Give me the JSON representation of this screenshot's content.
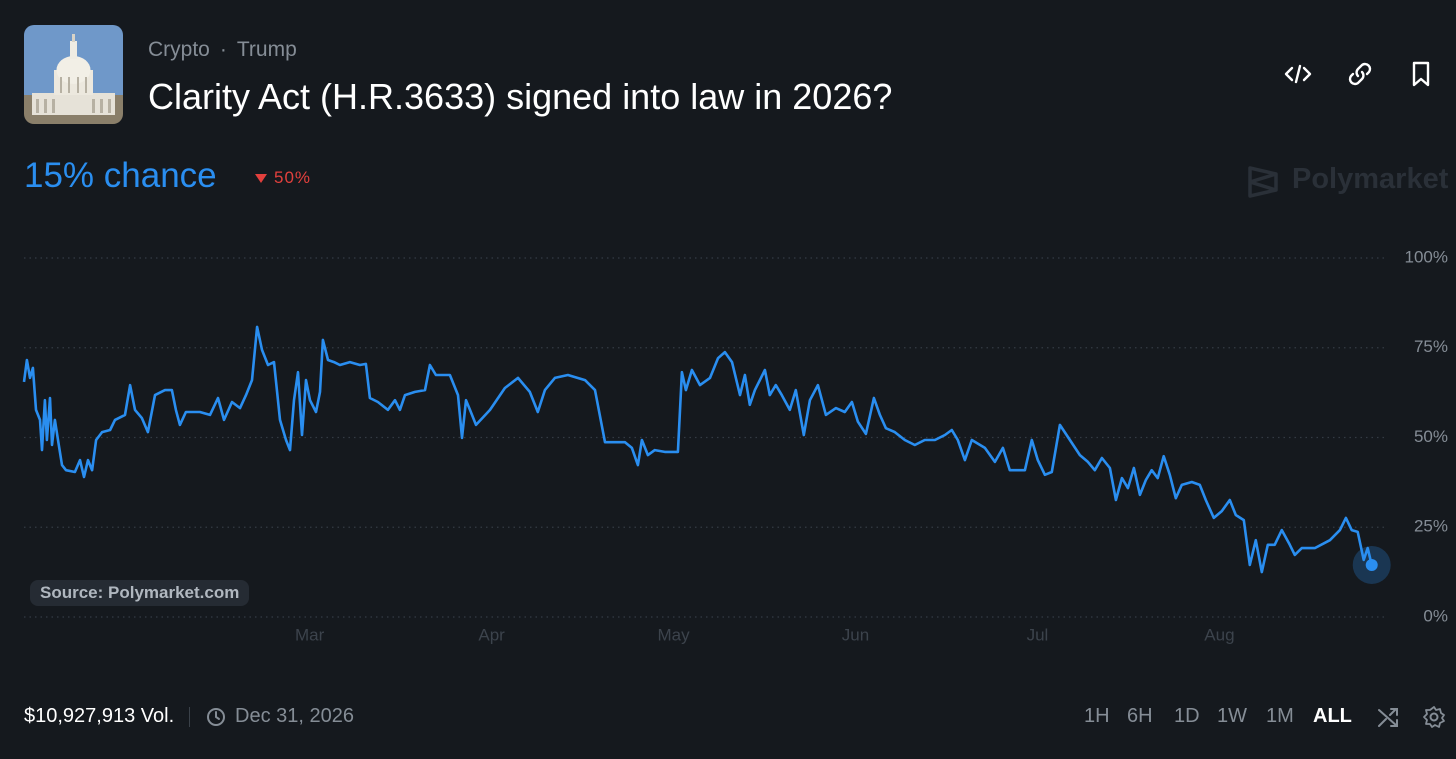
{
  "header": {
    "category": "Crypto",
    "separator": "·",
    "tag": "Trump",
    "title": "Clarity Act (H.R.3633) signed into law in 2026?"
  },
  "summary": {
    "chance": "15% chance",
    "change": "50%"
  },
  "brand": "Polymarket",
  "chart_data": {
    "type": "line",
    "source": "Source: Polymarket.com",
    "x": [
      1.43,
      1.446,
      1.463,
      1.479,
      1.496,
      1.518,
      1.529,
      1.545,
      1.556,
      1.573,
      1.584,
      1.6,
      1.617,
      1.639,
      1.661,
      1.71,
      1.738,
      1.76,
      1.782,
      1.804,
      1.826,
      1.859,
      1.903,
      1.93,
      1.985,
      2.013,
      2.04,
      2.078,
      2.111,
      2.15,
      2.205,
      2.243,
      2.265,
      2.287,
      2.32,
      2.397,
      2.452,
      2.496,
      2.529,
      2.573,
      2.617,
      2.65,
      2.683,
      2.711,
      2.738,
      2.771,
      2.804,
      2.837,
      2.87,
      2.892,
      2.914,
      2.936,
      2.958,
      2.98,
      3.002,
      3.035,
      3.057,
      3.073,
      3.101,
      3.134,
      3.166,
      3.221,
      3.276,
      3.309,
      3.331,
      3.375,
      3.43,
      3.469,
      3.496,
      3.524,
      3.579,
      3.634,
      3.661,
      3.694,
      3.771,
      3.815,
      3.837,
      3.859,
      3.881,
      3.914,
      3.991,
      4.073,
      4.145,
      4.21,
      4.254,
      4.293,
      4.348,
      4.419,
      4.513,
      4.568,
      4.623,
      4.733,
      4.771,
      4.804,
      4.826,
      4.859,
      4.897,
      4.952,
      5.024,
      5.046,
      5.068,
      5.101,
      5.145,
      5.2,
      5.244,
      5.282,
      5.321,
      5.365,
      5.392,
      5.419,
      5.447,
      5.502,
      5.529,
      5.562,
      5.595,
      5.639,
      5.672,
      5.716,
      5.749,
      5.793,
      5.837,
      5.892,
      5.941,
      5.98,
      6.013,
      6.057,
      6.101,
      6.134,
      6.167,
      6.216,
      6.271,
      6.326,
      6.381,
      6.436,
      6.491,
      6.529,
      6.562,
      6.601,
      6.639,
      6.711,
      6.766,
      6.81,
      6.848,
      6.931,
      6.969,
      7.002,
      7.041,
      7.079,
      7.123,
      7.178,
      7.233,
      7.277,
      7.315,
      7.354,
      7.398,
      7.431,
      7.464,
      7.497,
      7.53,
      7.563,
      7.596,
      7.628,
      7.661,
      7.694,
      7.727,
      7.76,
      7.793,
      7.848,
      7.892,
      7.925,
      7.969,
      8.013,
      8.057,
      8.09,
      8.134,
      8.167,
      8.2,
      8.233,
      8.266,
      8.304,
      8.343,
      8.387,
      8.414,
      8.453,
      8.524,
      8.607,
      8.662,
      8.695,
      8.727,
      8.76,
      8.793,
      8.815,
      8.837
    ],
    "series": [
      {
        "color": "#2a8ef0",
        "values": [
          65.5,
          71.6,
          66.6,
          69.4,
          57.7,
          54.9,
          46.5,
          60.4,
          49.3,
          61,
          47.9,
          54.9,
          49.3,
          42.3,
          40.9,
          40.4,
          43.7,
          39,
          43.7,
          40.9,
          49.3,
          51.5,
          52.1,
          54.9,
          56.3,
          64.6,
          57.7,
          55.4,
          51.5,
          61.8,
          63.2,
          63.2,
          57.7,
          53.5,
          57.1,
          57.1,
          56.3,
          61,
          54.9,
          59.9,
          58.2,
          61.8,
          66,
          80.8,
          74.4,
          70.2,
          71,
          54.9,
          49.3,
          46.5,
          60.4,
          68.2,
          50.7,
          66,
          60.4,
          57.1,
          62.7,
          77.2,
          71.6,
          71,
          70.2,
          71,
          70.2,
          70.5,
          61,
          59.9,
          57.7,
          60.4,
          57.7,
          61.8,
          62.7,
          63.2,
          70.2,
          67.4,
          67.4,
          61.8,
          49.9,
          60.4,
          57.7,
          53.5,
          57.7,
          63.8,
          66.6,
          62.7,
          57.1,
          63.2,
          66.6,
          67.4,
          66,
          63.2,
          48.7,
          48.7,
          47.1,
          42.3,
          49.3,
          45.1,
          46.5,
          46,
          46,
          68.2,
          63.2,
          68.8,
          64.6,
          66.6,
          72.1,
          73.8,
          71,
          61.8,
          67.4,
          59.1,
          63.2,
          68.8,
          61.8,
          64.6,
          61.8,
          57.7,
          63.2,
          50.7,
          60.4,
          64.6,
          56.3,
          58.2,
          57.1,
          59.9,
          54.4,
          51,
          61,
          56.3,
          52.6,
          51.5,
          49.3,
          47.9,
          49.3,
          49.3,
          50.7,
          52.1,
          49.3,
          43.7,
          49.3,
          47.1,
          43.2,
          47.1,
          40.9,
          40.9,
          49.3,
          43.7,
          39.6,
          40.4,
          53.5,
          49.3,
          45.1,
          43.2,
          40.9,
          44.3,
          41.5,
          32.6,
          38.7,
          35.9,
          41.5,
          34,
          38.2,
          40.9,
          38.7,
          44.8,
          39.6,
          33.1,
          36.8,
          37.6,
          36.8,
          32.6,
          27.6,
          29.5,
          32.6,
          28.4,
          27,
          14.5,
          21.4,
          12.5,
          20.1,
          20.1,
          24.2,
          20.1,
          17.3,
          19.2,
          19.2,
          21.4,
          24.2,
          27.6,
          24.2,
          23.7,
          15.9,
          19.2,
          14.5
        ]
      }
    ],
    "xlim": [
      1.43,
      8.91
    ],
    "xticks": [
      {
        "value": 3,
        "label": "Mar"
      },
      {
        "value": 4,
        "label": "Apr"
      },
      {
        "value": 5,
        "label": "May"
      },
      {
        "value": 6,
        "label": "Jun"
      },
      {
        "value": 7,
        "label": "Jul"
      },
      {
        "value": 8,
        "label": "Aug"
      }
    ],
    "ylim": [
      0,
      100
    ],
    "yticks": [
      {
        "value": 0,
        "label": "0%"
      },
      {
        "value": 25,
        "label": "25%"
      },
      {
        "value": 50,
        "label": "50%"
      },
      {
        "value": 75,
        "label": "75%"
      },
      {
        "value": 100,
        "label": "100%"
      }
    ],
    "grid": true
  },
  "footer": {
    "volume": "$10,927,913 Vol.",
    "end_date": "Dec 31, 2026",
    "ranges": [
      "1H",
      "6H",
      "1D",
      "1W",
      "1M",
      "ALL"
    ],
    "active_range": 5
  }
}
